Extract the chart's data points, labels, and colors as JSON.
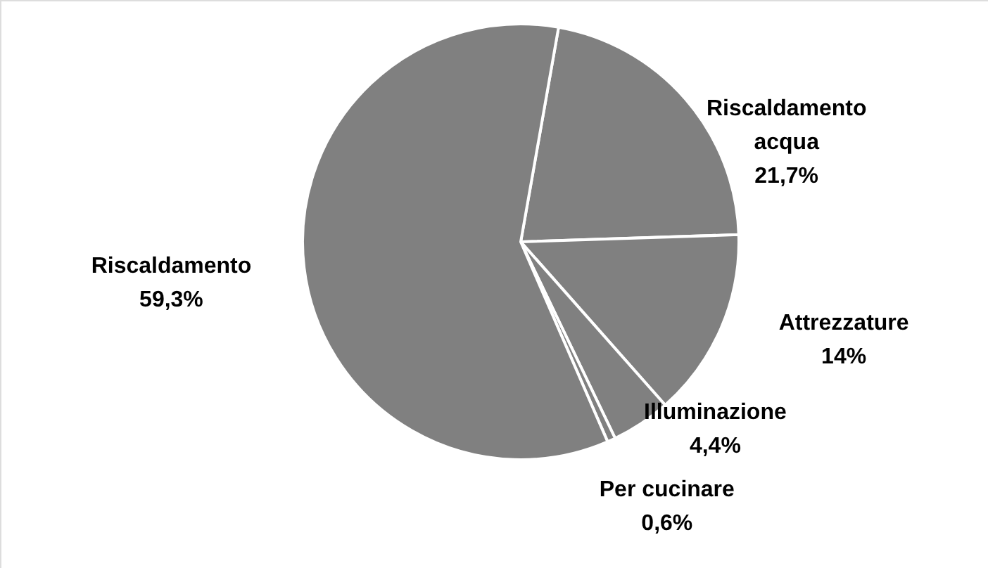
{
  "chart_data": {
    "type": "pie",
    "categories": [
      "Riscaldamento acqua",
      "Attrezzature",
      "Illuminazione",
      "Per cucinare",
      "Riscaldamento"
    ],
    "values": [
      21.7,
      14,
      4.4,
      0.6,
      59.3
    ],
    "colors": [
      "#808080",
      "#808080",
      "#808080",
      "#808080",
      "#808080"
    ],
    "value_labels": [
      "21,7%",
      "14%",
      "4,4%",
      "0,6%",
      "59,3%"
    ]
  }
}
